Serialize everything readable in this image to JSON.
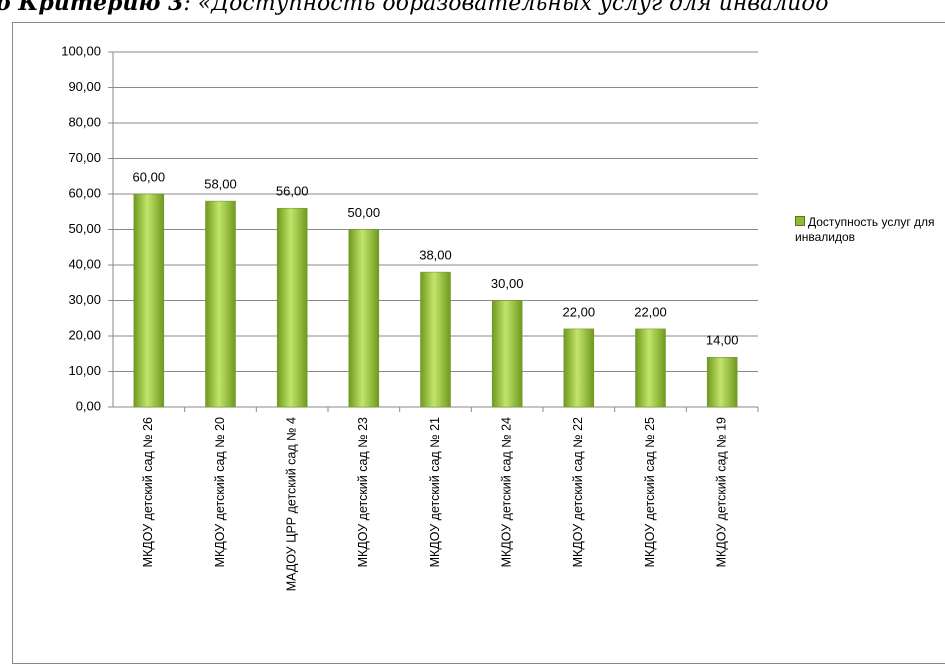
{
  "heading": {
    "bold": "о Критерию 3",
    "rest": ": «Доступность образовательных услуг для инвалидо"
  },
  "chart_data": {
    "type": "bar",
    "categories": [
      "МКДОУ детский сад № 26",
      "МКДОУ детский сад № 20",
      "МАДОУ ЦРР детский сад № 4",
      "МКДОУ детский сад № 23",
      "МКДОУ детский сад № 21",
      "МКДОУ детский сад № 24",
      "МКДОУ детский сад № 22",
      "МКДОУ детский сад № 25",
      "МКДОУ детский сад № 19"
    ],
    "series": [
      {
        "name": "Доступность услуг для инвалидов",
        "color": "#8fbc2f",
        "values": [
          60,
          58,
          56,
          50,
          38,
          30,
          22,
          22,
          14
        ],
        "value_labels": [
          "60,00",
          "58,00",
          "56,00",
          "50,00",
          "38,00",
          "30,00",
          "22,00",
          "22,00",
          "14,00"
        ]
      }
    ],
    "ylim": [
      0,
      100
    ],
    "yticks": [
      {
        "value": 0,
        "label": "0,00"
      },
      {
        "value": 10,
        "label": "10,00"
      },
      {
        "value": 20,
        "label": "20,00"
      },
      {
        "value": 30,
        "label": "30,00"
      },
      {
        "value": 40,
        "label": "40,00"
      },
      {
        "value": 50,
        "label": "50,00"
      },
      {
        "value": 60,
        "label": "60,00"
      },
      {
        "value": 70,
        "label": "70,00"
      },
      {
        "value": 80,
        "label": "80,00"
      },
      {
        "value": 90,
        "label": "90,00"
      },
      {
        "value": 100,
        "label": "100,00"
      }
    ],
    "grid": true,
    "legend": "right"
  }
}
